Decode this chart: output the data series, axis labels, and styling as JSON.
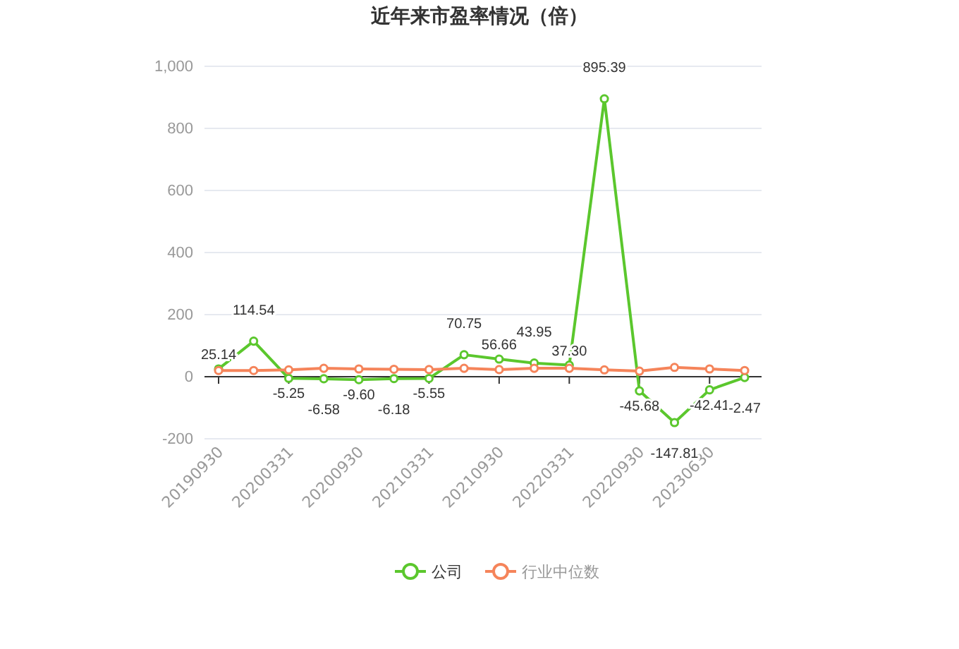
{
  "chart_data": {
    "type": "line",
    "title": "近年来市盈率情况（倍）",
    "categories": [
      "20190930",
      null,
      "20200331",
      null,
      "20200930",
      null,
      "20210331",
      null,
      "20210930",
      null,
      "20220331",
      null,
      "20220930",
      null,
      "20230630",
      null
    ],
    "series": [
      {
        "name": "公司",
        "color": "#5bc72d",
        "values": [
          25.14,
          114.54,
          -5.25,
          -6.58,
          -9.6,
          -6.18,
          -5.55,
          70.75,
          56.66,
          43.95,
          37.3,
          895.39,
          -45.68,
          -147.81,
          -42.41,
          -2.47
        ],
        "value_labels": [
          "25.14",
          "114.54",
          "-5.25",
          "-6.58",
          "-9.60",
          "-6.18",
          "-5.55",
          "70.75",
          "56.66",
          "43.95",
          "37.30",
          "895.39",
          "-45.68",
          "-147.81",
          "-42.41",
          "-2.47"
        ]
      },
      {
        "name": "行业中位数",
        "color": "#f5845a",
        "values": [
          20,
          20,
          22,
          27,
          25,
          24,
          23,
          27,
          23,
          27,
          27,
          22,
          18,
          30,
          25,
          20
        ]
      }
    ],
    "ylim": [
      -200,
      1000
    ],
    "yticks": [
      -200,
      0,
      200,
      400,
      600,
      800,
      {
        "value": 1000,
        "label": "1,000"
      }
    ],
    "grid": "y",
    "legend": "bottom",
    "marker": "circle",
    "line_style": "solid"
  }
}
